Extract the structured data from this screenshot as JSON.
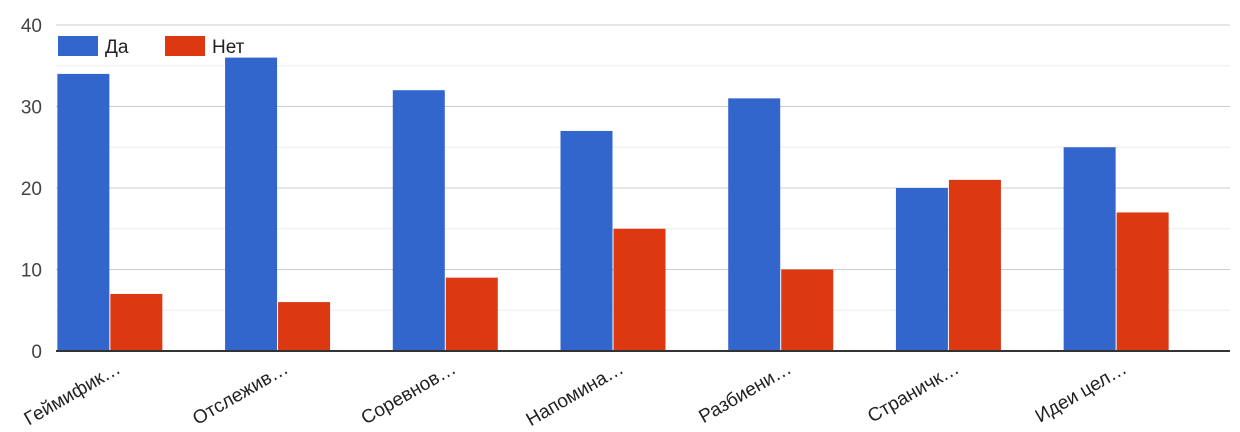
{
  "chart_data": {
    "type": "bar",
    "categories": [
      "Геймифик…",
      "Отслежив…",
      "Соревнов…",
      "Напомина…",
      "Разбиени…",
      "Страничк…",
      "Идеи цел…"
    ],
    "series": [
      {
        "name": "Да",
        "color": "#3366cc",
        "values": [
          34,
          36,
          32,
          27,
          31,
          20,
          25
        ]
      },
      {
        "name": "Нет",
        "color": "#dc3912",
        "values": [
          7,
          6,
          9,
          15,
          10,
          21,
          17
        ]
      }
    ],
    "ylim": [
      0,
      40
    ],
    "yticks": [
      0,
      10,
      20,
      30,
      40
    ],
    "grid": true,
    "legend_position": "top-left",
    "xlabel": "",
    "ylabel": "",
    "title": ""
  }
}
